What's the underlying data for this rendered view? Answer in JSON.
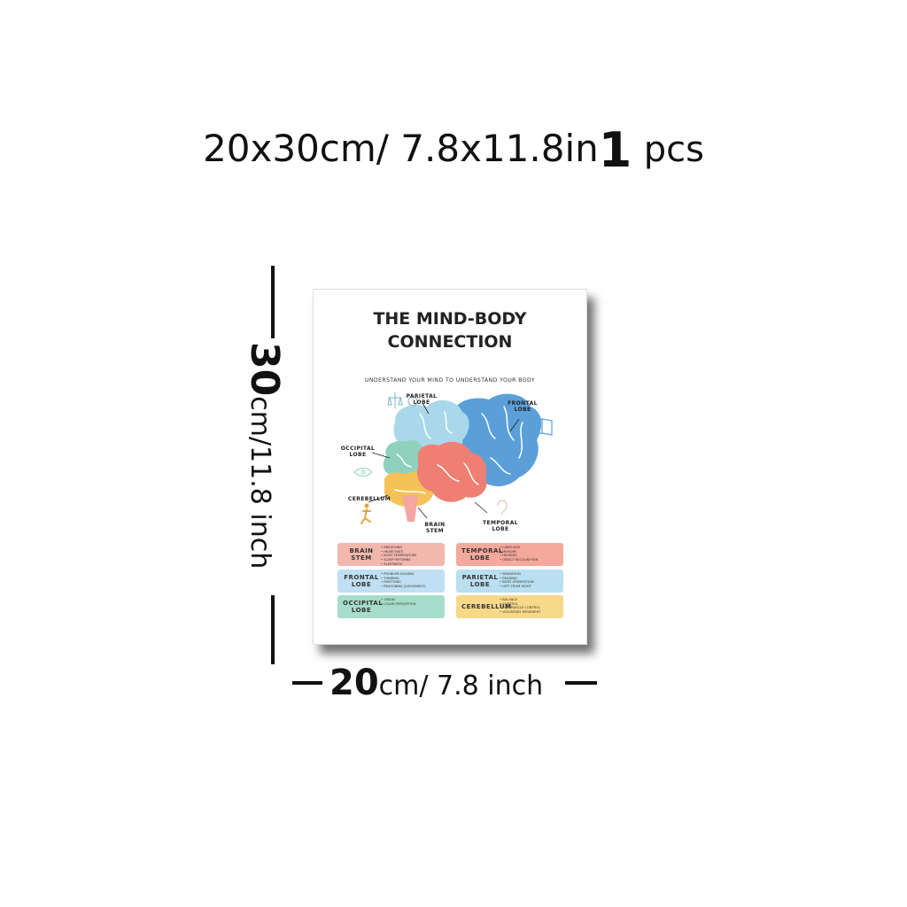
{
  "headline": {
    "size_text": "20x30cm/ 7.8x11.8in",
    "qty_num": "1",
    "qty_unit": "pcs"
  },
  "dimensions": {
    "height_num": "30",
    "height_unit": "cm/11.8 inch",
    "width_num": "20",
    "width_unit": "cm/ 7.8 inch"
  },
  "poster": {
    "title_line1": "THE MIND-BODY",
    "title_line2": "CONNECTION",
    "subtitle": "UNDERSTAND YOUR MIND TO UNDERSTAND YOUR BODY",
    "labels": {
      "parietal": "PARIETAL LOBE",
      "frontal": "FRONTAL LOBE",
      "occipital": "OCCIPITAL LOBE",
      "cerebellum": "CEREBELLUM",
      "brain_stem": "BRAIN STEM",
      "temporal": "TEMPORAL LOBE"
    },
    "colors": {
      "frontal": "#5b9fd8",
      "parietal": "#a9d8ea",
      "occipital": "#8fd1bd",
      "temporal": "#ef7f72",
      "cerebellum": "#f4c256",
      "stem": "#f2a7a2"
    },
    "cards": [
      {
        "name": "BRAIN STEM",
        "color": "#f2b7ad",
        "items": [
          "BREATHING",
          "HEART RATE",
          "BODY TEMPERATURE",
          "SLEEP PATTERNS",
          "ALERTNESS"
        ]
      },
      {
        "name": "TEMPORAL LOBE",
        "color": "#f5a89c",
        "items": [
          "LANGUAGE",
          "MEMORY",
          "HEARING",
          "OBJECT RECOGNITION"
        ]
      },
      {
        "name": "FRONTAL LOBE",
        "color": "#bfe0f3",
        "items": [
          "PROBLEM SOLVING",
          "THINKING",
          "EMOTIONS",
          "REASONING (JUDGEMENT)"
        ]
      },
      {
        "name": "PARIETAL LOBE",
        "color": "#b9dff0",
        "items": [
          "SENSATION",
          "READING",
          "BODY ORIENTATION",
          "LEFT FROM RIGHT"
        ]
      },
      {
        "name": "OCCIPITAL LOBE",
        "color": "#a6dccb",
        "items": [
          "VISION",
          "COLOR PERCEPTION"
        ]
      },
      {
        "name": "CEREBELLUM",
        "color": "#f7d98a",
        "items": [
          "BALANCE",
          "CONTROL",
          "FINE MUSCLE CONTROL",
          "VOLUNTARY MOVEMENT"
        ]
      }
    ]
  }
}
